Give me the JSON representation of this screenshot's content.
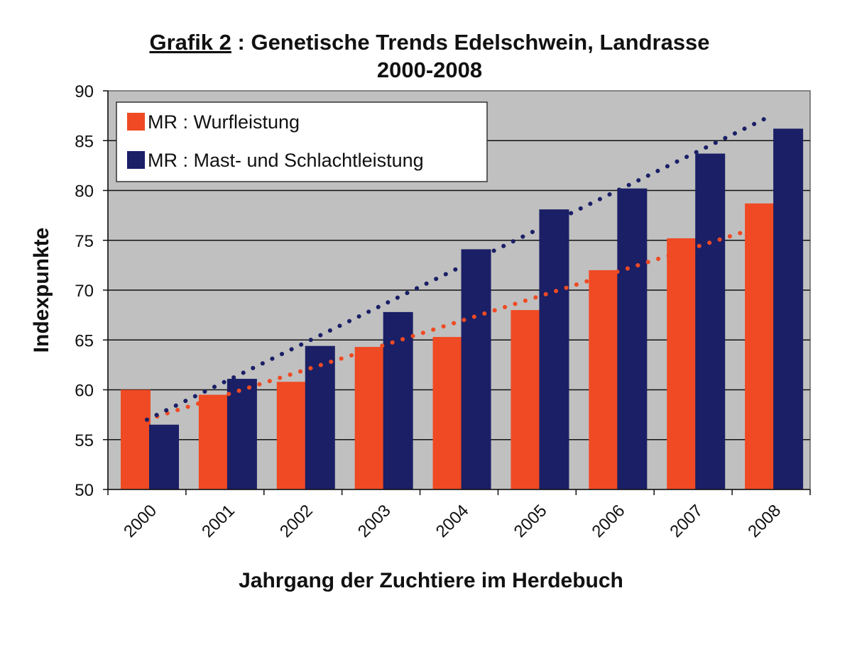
{
  "chart_data": {
    "type": "bar",
    "title_prefix": "Grafik 2",
    "title_rest": " : Genetische Trends Edelschwein, Landrasse",
    "title_line2": "2000-2008",
    "xlabel": "Jahrgang der Zuchtiere im Herdebuch",
    "ylabel": "Indexpunkte",
    "ylim": [
      50,
      90
    ],
    "yticks": [
      "50",
      "55",
      "60",
      "65",
      "70",
      "75",
      "80",
      "85",
      "90"
    ],
    "categories": [
      "2000",
      "2001",
      "2002",
      "2003",
      "2004",
      "2005",
      "2006",
      "2007",
      "2008"
    ],
    "series": [
      {
        "name": "MR : Wurfleistung",
        "color": "#ef4a23",
        "values": [
          60.0,
          59.5,
          60.8,
          64.3,
          65.3,
          68.0,
          72.0,
          75.2,
          78.7
        ],
        "trend": [
          57.0,
          76.7
        ]
      },
      {
        "name": "MR : Mast- und Schlachtleistung",
        "color": "#1a1f66",
        "values": [
          56.5,
          61.1,
          64.4,
          67.8,
          74.1,
          78.1,
          80.2,
          83.7,
          86.2
        ],
        "trend": [
          57.0,
          87.5
        ]
      }
    ],
    "grid": true,
    "legend_position": "top-left",
    "plot_background": "#c0c0c0"
  }
}
